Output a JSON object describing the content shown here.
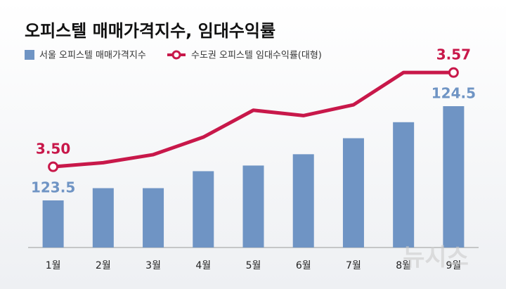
{
  "chart_data": {
    "type": "bar-line",
    "title": "오피스텔 매매가격지수, 임대수익률",
    "categories": [
      "1월",
      "2월",
      "3월",
      "4월",
      "5월",
      "6월",
      "7월",
      "8월",
      "9월"
    ],
    "series": [
      {
        "name": "서울 오피스텔 매매가격지수",
        "type": "bar",
        "color": "#6f94c4",
        "values": [
          123.5,
          123.63,
          123.63,
          123.81,
          123.87,
          123.99,
          124.16,
          124.33,
          124.5
        ],
        "value_labels": [
          "123.5",
          null,
          null,
          null,
          null,
          null,
          null,
          null,
          "124.5"
        ]
      },
      {
        "name": "수도권 오피스텔 임대수익률(대형)",
        "type": "line",
        "axis": "y2",
        "color": "#c8184a",
        "values": [
          3.5,
          3.503,
          3.509,
          3.522,
          3.542,
          3.538,
          3.546,
          3.57,
          3.57
        ],
        "value_labels": [
          "3.50",
          null,
          null,
          null,
          null,
          null,
          null,
          null,
          "3.57"
        ]
      }
    ],
    "ylim": [
      123,
      125
    ],
    "y2lim": [
      3.44,
      3.58
    ],
    "watermark": "뉴시스"
  }
}
